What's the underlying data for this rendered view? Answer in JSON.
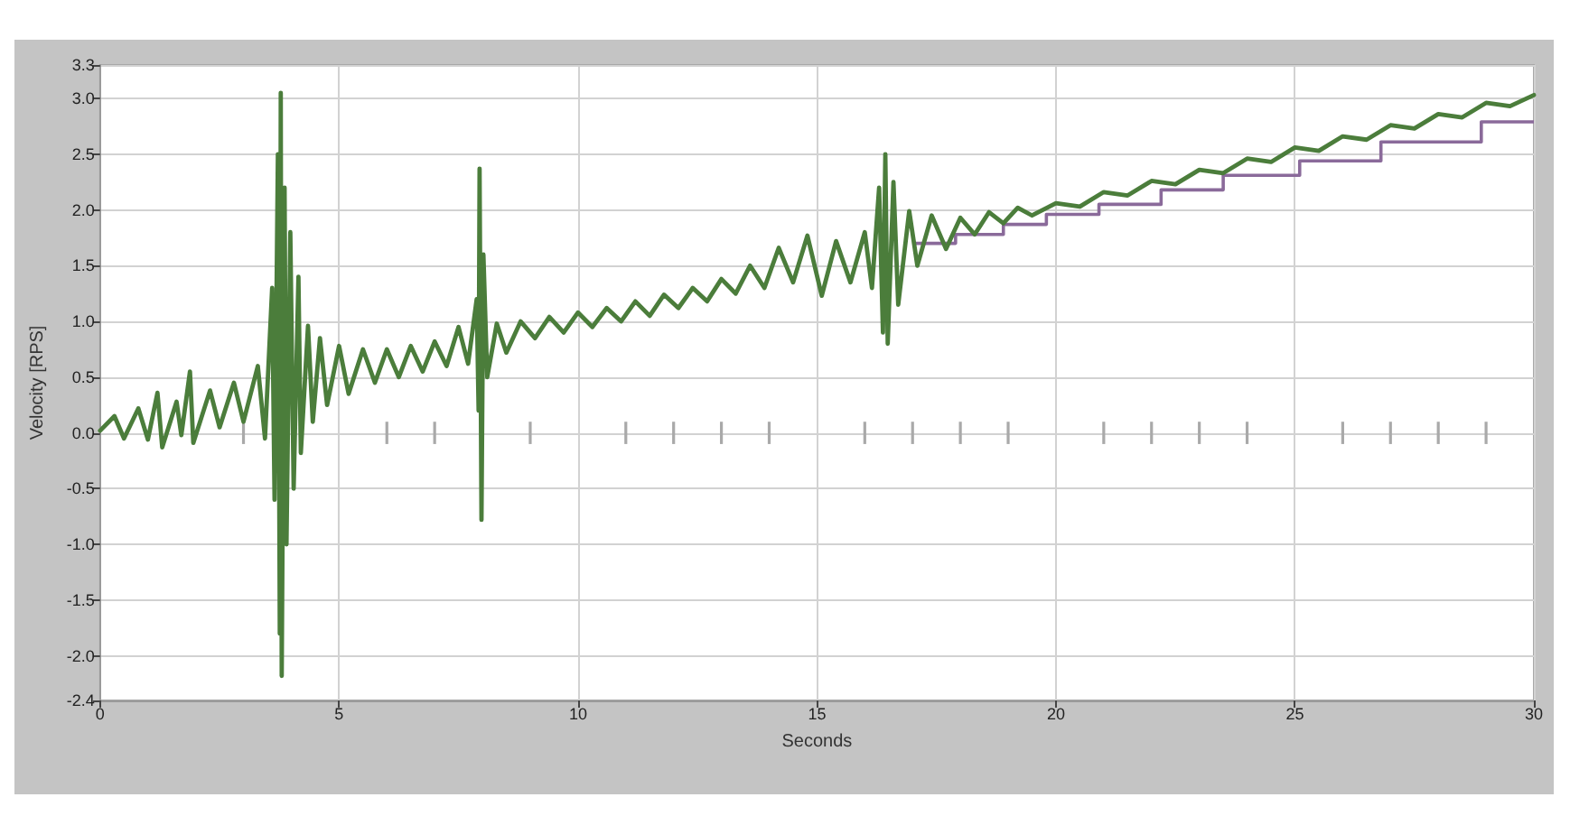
{
  "chart_data": {
    "type": "line",
    "xlabel": "Seconds",
    "ylabel": "Velocity [RPS]",
    "xlim": [
      0,
      30
    ],
    "xticks": [
      0,
      5,
      10,
      15,
      20,
      25,
      30
    ],
    "ylim": [
      -2.4,
      3.3
    ],
    "yticks": [
      -2.4,
      {
        "value": -2,
        "label": "-2.0"
      },
      -1.5,
      {
        "value": -1,
        "label": "-1.0"
      },
      -0.5,
      {
        "value": 0,
        "label": "0.0"
      },
      0.5,
      {
        "value": 1,
        "label": "1.0"
      },
      1.5,
      {
        "value": 2,
        "label": "2.0"
      },
      2.5,
      {
        "value": 3,
        "label": "3.0"
      },
      3.3
    ],
    "grid": true,
    "series": [
      {
        "type": "bar",
        "color": "#a9a9a9",
        "x": [
          3,
          6,
          7,
          9,
          11,
          12,
          13,
          14,
          16,
          17,
          18,
          19,
          21,
          22,
          23,
          24,
          26,
          27,
          28,
          29
        ],
        "base": [
          -0.1,
          -0.1,
          -0.1,
          -0.1,
          -0.1,
          -0.1,
          -0.1,
          -0.1,
          -0.1,
          -0.1,
          -0.1,
          -0.1,
          -0.1,
          -0.1,
          -0.1,
          -0.1,
          -0.1,
          -0.1,
          -0.1,
          -0.1
        ],
        "values": [
          0.2,
          0.2,
          0.2,
          0.2,
          0.2,
          0.2,
          0.2,
          0.2,
          0.2,
          0.2,
          0.2,
          0.2,
          0.2,
          0.2,
          0.2,
          0.2,
          0.2,
          0.2,
          0.2,
          0.2
        ]
      },
      {
        "type": "step",
        "color": "#8a6a9a",
        "x": [
          17,
          17.9,
          18.9,
          19.8,
          20.9,
          22.2,
          23.5,
          25.1,
          26.8,
          28.9,
          30
        ],
        "values": [
          1.7,
          1.78,
          1.87,
          1.96,
          2.05,
          2.18,
          2.31,
          2.44,
          2.61,
          2.79,
          2.79
        ]
      },
      {
        "color": "#4b7d3b",
        "x": [
          0,
          0.3,
          0.5,
          0.8,
          1,
          1.2,
          1.3,
          1.6,
          1.7,
          1.88,
          1.95,
          2.3,
          2.5,
          2.8,
          3,
          3.3,
          3.45,
          3.6,
          3.65,
          3.72,
          3.76,
          3.78,
          3.8,
          3.86,
          3.9,
          3.98,
          4.05,
          4.15,
          4.2,
          4.35,
          4.45,
          4.6,
          4.75,
          5,
          5.2,
          5.5,
          5.75,
          6,
          6.25,
          6.5,
          6.75,
          7,
          7.25,
          7.5,
          7.7,
          7.88,
          7.92,
          7.94,
          7.98,
          8.02,
          8.1,
          8.3,
          8.5,
          8.8,
          9.1,
          9.4,
          9.7,
          10,
          10.3,
          10.6,
          10.9,
          11.2,
          11.5,
          11.8,
          12.1,
          12.4,
          12.7,
          13,
          13.3,
          13.6,
          13.9,
          14.2,
          14.5,
          14.8,
          15.1,
          15.4,
          15.7,
          16,
          16.15,
          16.3,
          16.38,
          16.43,
          16.48,
          16.6,
          16.7,
          16.93,
          17.1,
          17.4,
          17.7,
          18,
          18.3,
          18.6,
          18.9,
          19.2,
          19.5,
          20,
          20.5,
          21,
          21.5,
          22,
          22.5,
          23,
          23.5,
          24,
          24.5,
          25,
          25.5,
          26,
          26.5,
          27,
          27.5,
          28,
          28.5,
          29,
          29.5,
          30
        ],
        "values": [
          0.02,
          0.15,
          -0.05,
          0.22,
          -0.06,
          0.36,
          -0.13,
          0.28,
          -0.02,
          0.55,
          -0.09,
          0.38,
          0.05,
          0.45,
          0.1,
          0.6,
          -0.05,
          1.3,
          -0.6,
          2.5,
          -1.8,
          3.05,
          -2.18,
          2.2,
          -1,
          1.8,
          -0.5,
          1.4,
          -0.18,
          0.96,
          0.1,
          0.85,
          0.25,
          0.78,
          0.35,
          0.75,
          0.45,
          0.75,
          0.5,
          0.78,
          0.55,
          0.82,
          0.6,
          0.95,
          0.62,
          1.2,
          0.2,
          2.37,
          -0.78,
          1.6,
          0.5,
          0.98,
          0.72,
          1,
          0.85,
          1.04,
          0.9,
          1.08,
          0.95,
          1.12,
          1,
          1.18,
          1.05,
          1.24,
          1.12,
          1.3,
          1.18,
          1.38,
          1.25,
          1.5,
          1.3,
          1.66,
          1.35,
          1.77,
          1.23,
          1.72,
          1.35,
          1.8,
          1.3,
          2.2,
          0.9,
          2.5,
          0.8,
          2.25,
          1.15,
          1.99,
          1.5,
          1.95,
          1.65,
          1.93,
          1.78,
          1.98,
          1.88,
          2.02,
          1.95,
          2.06,
          2.03,
          2.16,
          2.13,
          2.26,
          2.23,
          2.36,
          2.33,
          2.46,
          2.43,
          2.56,
          2.53,
          2.66,
          2.63,
          2.76,
          2.73,
          2.86,
          2.83,
          2.96,
          2.93,
          3.03
        ]
      }
    ]
  }
}
